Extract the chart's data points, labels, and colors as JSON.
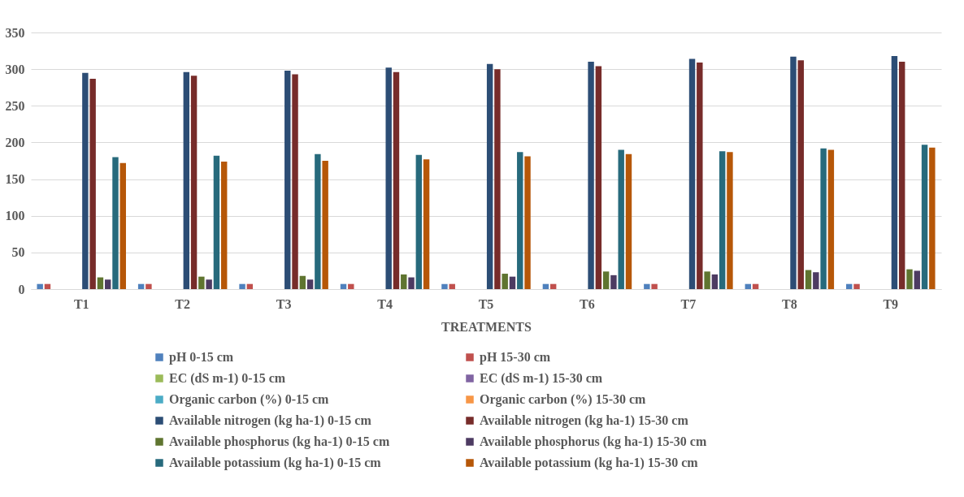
{
  "chart_data": {
    "type": "bar",
    "xlabel": "TREATMENTS",
    "categories": [
      "T1",
      "T2",
      "T3",
      "T4",
      "T5",
      "T6",
      "T7",
      "T8",
      "T9"
    ],
    "ylim": [
      0,
      350
    ],
    "yticks": [
      0,
      50,
      100,
      150,
      200,
      250,
      300,
      350
    ],
    "grid": "y",
    "legend": "bottom",
    "series": [
      {
        "name": "pH 0-15 cm",
        "color": "#4f81bd",
        "values": [
          7,
          7,
          7,
          7,
          7,
          7,
          7,
          7,
          7
        ]
      },
      {
        "name": "pH 15-30 cm",
        "color": "#c0504d",
        "values": [
          7,
          7,
          7,
          7,
          7,
          7,
          7,
          7,
          7
        ]
      },
      {
        "name": "EC (dS m-1) 0-15 cm",
        "color": "#9bbb59",
        "values": [
          null,
          null,
          null,
          null,
          null,
          null,
          null,
          null,
          null
        ]
      },
      {
        "name": "EC (dS m-1) 15-30 cm",
        "color": "#8064a2",
        "values": [
          null,
          null,
          null,
          null,
          null,
          null,
          null,
          null,
          null
        ]
      },
      {
        "name": "Organic carbon (%) 0-15 cm",
        "color": "#4bacc6",
        "values": [
          null,
          null,
          null,
          null,
          null,
          null,
          null,
          null,
          null
        ]
      },
      {
        "name": "Organic carbon (%) 15-30 cm",
        "color": "#f79646",
        "values": [
          null,
          null,
          null,
          null,
          null,
          null,
          null,
          null,
          null
        ]
      },
      {
        "name": "Available nitrogen (kg ha-1) 0-15 cm",
        "color": "#2c4d75",
        "values": [
          295,
          296,
          298,
          302,
          307,
          310,
          314,
          317,
          318
        ]
      },
      {
        "name": "Available nitrogen (kg ha-1) 15-30 cm",
        "color": "#772c2a",
        "values": [
          287,
          291,
          293,
          296,
          300,
          304,
          309,
          312,
          310
        ]
      },
      {
        "name": "Available phosphorus (kg ha-1) 0-15 cm",
        "color": "#5f7530",
        "values": [
          16,
          17,
          18,
          20,
          21,
          24,
          24,
          26,
          27
        ]
      },
      {
        "name": "Available phosphorus (kg ha-1) 15-30 cm",
        "color": "#4d3b62",
        "values": [
          13,
          13,
          13,
          16,
          17,
          19,
          20,
          23,
          25
        ]
      },
      {
        "name": "Available potassium (kg ha-1) 0-15 cm",
        "color": "#276a7c",
        "values": [
          180,
          182,
          184,
          183,
          187,
          190,
          188,
          192,
          197
        ]
      },
      {
        "name": "Available potassium (kg ha-1) 15-30 cm",
        "color": "#b65708",
        "values": [
          172,
          174,
          175,
          177,
          181,
          184,
          187,
          190,
          193
        ]
      }
    ]
  }
}
